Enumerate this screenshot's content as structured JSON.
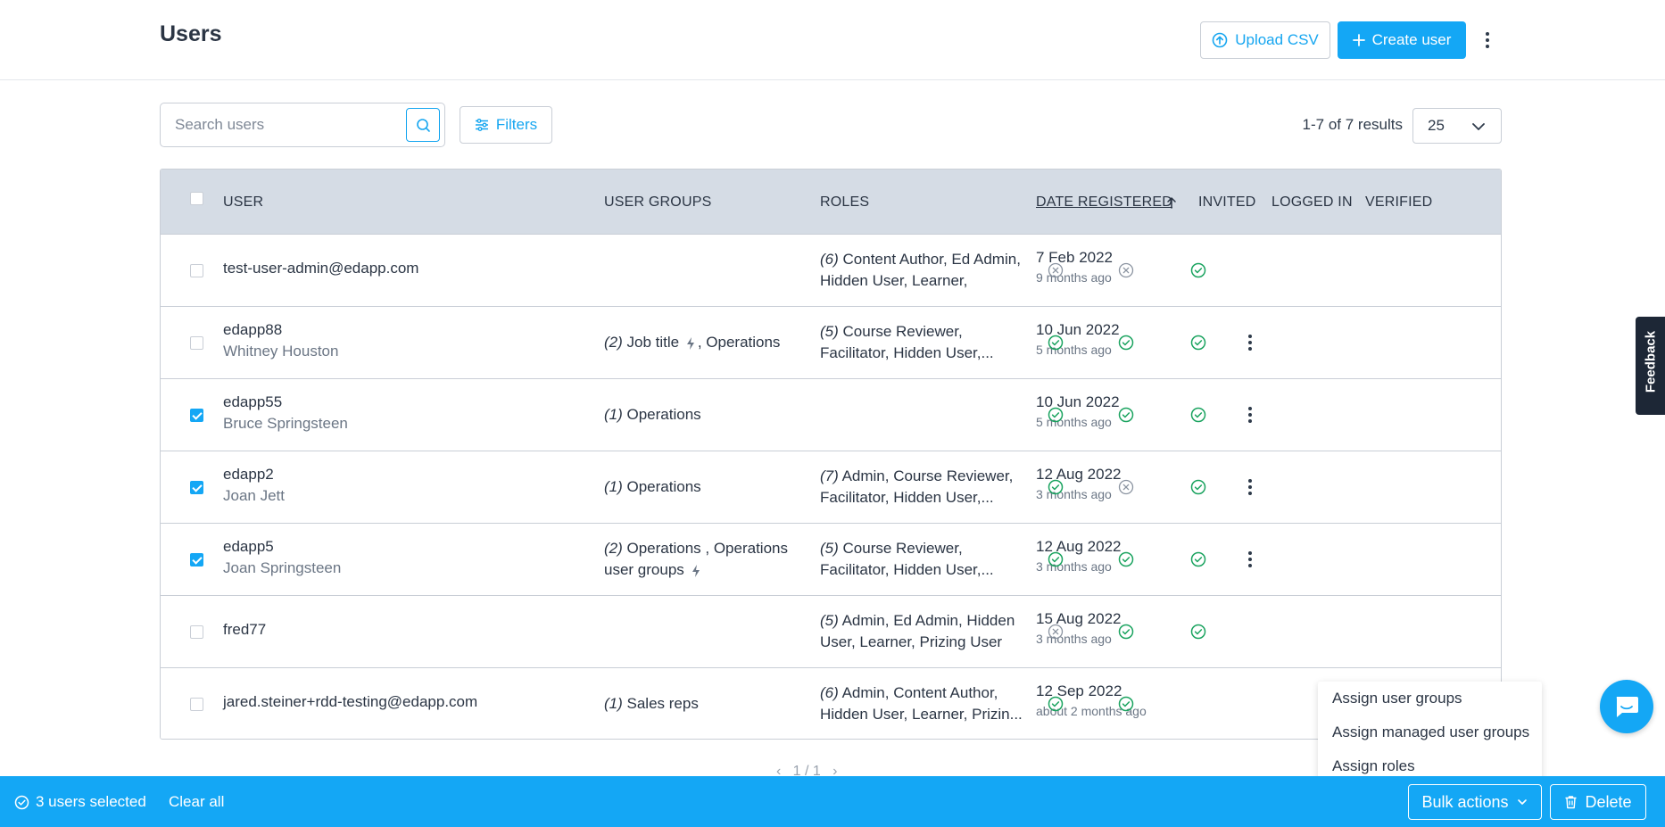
{
  "header": {
    "title": "Users",
    "upload_csv_label": "Upload CSV",
    "create_user_label": "Create user"
  },
  "toolbar": {
    "search_placeholder": "Search users",
    "filters_label": "Filters",
    "results_text": "1-7 of 7 results",
    "per_page": "25"
  },
  "table": {
    "columns": {
      "user": "USER",
      "user_groups": "USER GROUPS",
      "roles": "ROLES",
      "date_registered": "DATE REGISTERED",
      "invited": "INVITED",
      "logged_in": "LOGGED IN",
      "verified": "VERIFIED"
    },
    "rows": [
      {
        "user": "test-user-admin@edapp.com",
        "name": "",
        "checked": false,
        "groups_count": "",
        "groups": "",
        "roles_count": "(6)",
        "roles": " Content Author, Ed Admin, Hidden User, Learner, Owner...",
        "date": "7 Feb 2022",
        "date_rel": "9 months ago",
        "invited": "no",
        "logged_in": "no",
        "verified": "yes",
        "menu": false
      },
      {
        "user": "edapp88",
        "name": "Whitney Houston",
        "checked": false,
        "groups_count": "(2)",
        "groups_a": " Job title",
        "groups_b": ", Operations",
        "roles_count": "(5)",
        "roles": " Course Reviewer, Facilitator, Hidden User,...",
        "date": "10 Jun 2022",
        "date_rel": "5 months ago",
        "invited": "yes",
        "logged_in": "yes",
        "verified": "yes",
        "menu": true
      },
      {
        "user": "edapp55",
        "name": "Bruce Springsteen",
        "checked": true,
        "groups_count": "(1)",
        "groups": " Operations",
        "roles_count": "",
        "roles": "",
        "date": "10 Jun 2022",
        "date_rel": "5 months ago",
        "invited": "yes",
        "logged_in": "yes",
        "verified": "yes",
        "menu": true
      },
      {
        "user": "edapp2",
        "name": "Joan Jett",
        "checked": true,
        "groups_count": "(1)",
        "groups": " Operations",
        "roles_count": "(7)",
        "roles": " Admin, Course Reviewer, Facilitator, Hidden User,...",
        "date": "12 Aug 2022",
        "date_rel": "3 months ago",
        "invited": "yes",
        "logged_in": "no",
        "verified": "yes",
        "menu": true
      },
      {
        "user": "edapp5",
        "name": "Joan Springsteen",
        "checked": true,
        "groups_count": "(2)",
        "groups_a": " Operations , Operations user groups",
        "groups_b": "",
        "roles_count": "(5)",
        "roles": " Course Reviewer, Facilitator, Hidden User,...",
        "date": "12 Aug 2022",
        "date_rel": "3 months ago",
        "invited": "yes",
        "logged_in": "yes",
        "verified": "yes",
        "menu": true
      },
      {
        "user": "fred77",
        "name": "",
        "checked": false,
        "groups_count": "",
        "groups": "",
        "roles_count": "(5)",
        "roles": " Admin, Ed Admin, Hidden User, Learner, Prizing User",
        "date": "15 Aug 2022",
        "date_rel": "3 months ago",
        "invited": "no",
        "logged_in": "yes",
        "verified": "yes",
        "menu": false
      },
      {
        "user": "jared.steiner+rdd-testing@edapp.com",
        "name": "",
        "checked": false,
        "groups_count": "(1)",
        "groups": " Sales reps",
        "roles_count": "(6)",
        "roles": " Admin, Content Author, Hidden User, Learner, Prizin...",
        "date": "12 Sep 2022",
        "date_rel": "about 2 months ago",
        "invited": "yes",
        "logged_in": "yes",
        "verified": "",
        "menu": false
      }
    ]
  },
  "bulk_menu": {
    "items": [
      "Assign user groups",
      "Assign managed user groups",
      "Assign roles"
    ]
  },
  "bottom_bar": {
    "selected_text": "3 users selected",
    "clear_all": "Clear all",
    "bulk_actions": "Bulk actions",
    "delete": "Delete"
  },
  "feedback_label": "Feedback",
  "colors": {
    "accent": "#14a7f5",
    "success": "#1aa35f",
    "muted_status": "#8a93a0",
    "header_bg": "#d5dce5"
  }
}
